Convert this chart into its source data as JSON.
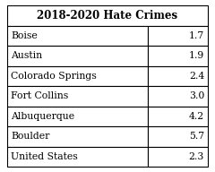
{
  "title": "2018-2020 Hate Crimes",
  "cities": [
    "Boise",
    "Austin",
    "Colorado Springs",
    "Fort Collins",
    "Albuquerque",
    "Boulder",
    "United States"
  ],
  "values": [
    1.7,
    1.9,
    2.4,
    3.0,
    4.2,
    5.7,
    2.3
  ],
  "bg_color": "#ffffff",
  "border_color": "#000000",
  "text_color": "#000000",
  "title_fontsize": 8.5,
  "cell_fontsize": 7.8,
  "fig_width": 2.4,
  "fig_height": 1.92,
  "dpi": 100
}
